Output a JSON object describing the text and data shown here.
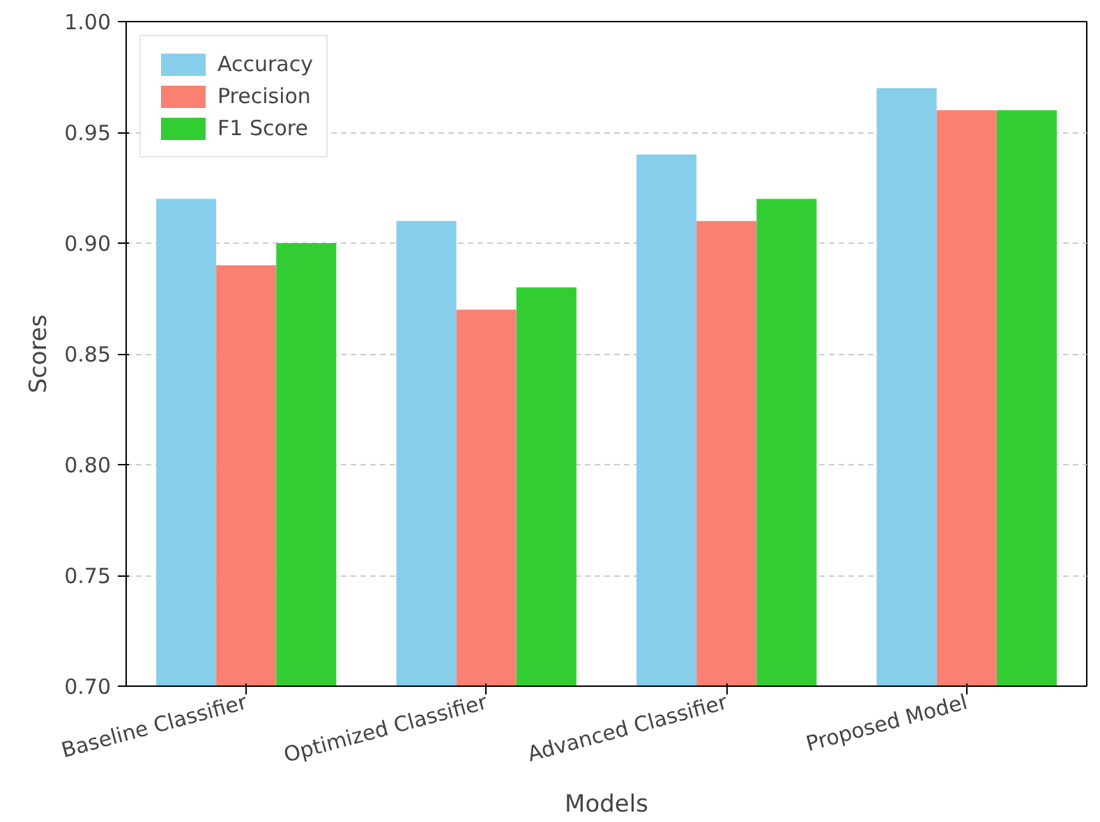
{
  "chart_data": {
    "type": "bar",
    "xlabel": "Models",
    "ylabel": "Scores",
    "categories": [
      "Baseline Classifier",
      "Optimized Classifier",
      "Advanced Classifier",
      "Proposed Model"
    ],
    "series": [
      {
        "name": "Accuracy",
        "color": "#87ceeb",
        "values": [
          0.92,
          0.91,
          0.94,
          0.97
        ]
      },
      {
        "name": "Precision",
        "color": "#fa8072",
        "values": [
          0.89,
          0.87,
          0.91,
          0.96
        ]
      },
      {
        "name": "F1 Score",
        "color": "#32cd32",
        "values": [
          0.9,
          0.88,
          0.92,
          0.96
        ]
      }
    ],
    "ylim": [
      0.7,
      1.0
    ],
    "yticks": [
      {
        "value": 0.7,
        "label": "0.70"
      },
      {
        "value": 0.75,
        "label": "0.75"
      },
      {
        "value": 0.8,
        "label": "0.80"
      },
      {
        "value": 0.85,
        "label": "0.85"
      },
      {
        "value": 0.9,
        "label": "0.90"
      },
      {
        "value": 0.95,
        "label": "0.95"
      },
      {
        "value": 1.0,
        "label": "1.00"
      }
    ],
    "grid": "y",
    "legend": "top left"
  }
}
